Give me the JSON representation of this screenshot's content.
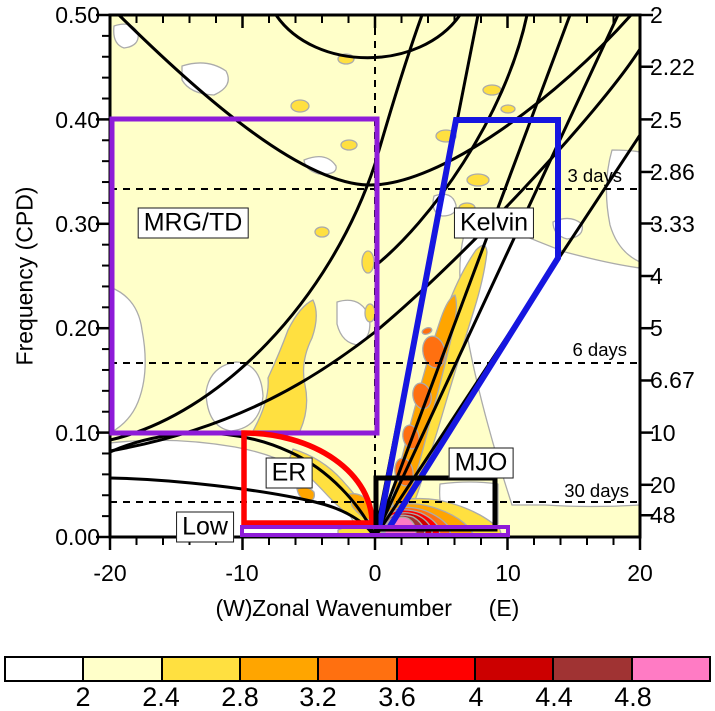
{
  "axes": {
    "y_left": {
      "title": "Frequency (CPD)",
      "ticks": [
        "0.50",
        "0.40",
        "0.30",
        "0.20",
        "0.10",
        "0.00"
      ],
      "range": [
        0.0,
        0.5
      ],
      "minor_step": 0.02
    },
    "y_right": {
      "ticks": [
        "2",
        "2.22",
        "2.5",
        "2.86",
        "3.33",
        "4",
        "5",
        "6.67",
        "10",
        "20",
        "48"
      ],
      "tick_periods": [
        2,
        2.22,
        2.5,
        2.86,
        3.33,
        4,
        5,
        6.67,
        10,
        20,
        48
      ]
    },
    "x": {
      "west": "(W)",
      "title": "Zonal Wavenumber",
      "east": "(E)",
      "ticks": [
        "-20",
        "-10",
        "0",
        "10",
        "20"
      ],
      "range": [
        -20,
        20
      ],
      "minor_step": 2
    }
  },
  "reference_lines": {
    "h": [
      {
        "label": "3 days",
        "frequency_cpd": 0.333
      },
      {
        "label": "6 days",
        "frequency_cpd": 0.167
      },
      {
        "label": "30 days",
        "frequency_cpd": 0.033
      }
    ],
    "v": [
      {
        "wavenumber": 0
      }
    ]
  },
  "filters": [
    {
      "label": "MRG/TD",
      "color": "#8E1BD8"
    },
    {
      "label": "Kelvin",
      "color": "#1616E0"
    },
    {
      "label": "ER",
      "color": "#FF0000"
    },
    {
      "label": "MJO",
      "color": "#000000"
    },
    {
      "label": "Low",
      "color": "#8E1BD8"
    }
  ],
  "colorbar": {
    "labels": [
      "2",
      "2.4",
      "2.8",
      "3.2",
      "3.6",
      "4",
      "4.4",
      "4.8"
    ],
    "colors": [
      "#FFFFFF",
      "#FFFFC9",
      "#FFE040",
      "#FFA500",
      "#FF7010",
      "#FF0000",
      "#CC0000",
      "#A03333",
      "#FF7BC4"
    ],
    "contour_line_color": "#ABABAB"
  },
  "chart_data": {
    "type": "heatmap",
    "subtype": "wavenumber-frequency filled contour spectrum (Wheeler-Kiladis diagram)",
    "xlabel": "(W)  Zonal Wavenumber  (E)",
    "ylabel": "Frequency (CPD)",
    "x_range": [
      -20,
      20
    ],
    "y_range": [
      0.0,
      0.5
    ],
    "right_axis_periods_days": [
      2,
      2.22,
      2.5,
      2.86,
      3.33,
      4,
      5,
      6.67,
      10,
      20,
      48
    ],
    "contour_levels": [
      2,
      2.4,
      2.8,
      3.2,
      3.6,
      4,
      4.4,
      4.8
    ],
    "dashed_reference_periods_days": [
      3,
      6,
      30
    ],
    "dispersion_curves": "black equatorial wave dispersion curves: Kelvin lines, n=1 ER, MRG/EIG n=0, n=1 inertio-gravity",
    "wave_filters": [
      {
        "name": "MRG/TD",
        "shape": "rectangle",
        "wavenumber_range": [
          -20,
          0
        ],
        "frequency_range": [
          0.1,
          0.4
        ]
      },
      {
        "name": "Kelvin",
        "shape": "polygon",
        "vertices_wavenumber_frequency": [
          [
            6.2,
            0.4
          ],
          [
            14,
            0.4
          ],
          [
            14,
            0.267
          ],
          [
            1.0,
            0.009
          ],
          [
            0.3,
            0.009
          ]
        ]
      },
      {
        "name": "ER",
        "shape": "quarter-ellipse",
        "wavenumber_range": [
          -10,
          -0.2
        ],
        "frequency_range": [
          0.012,
          0.1
        ]
      },
      {
        "name": "MJO",
        "shape": "rectangle",
        "wavenumber_range": [
          0,
          9
        ],
        "frequency_range": [
          0.014,
          0.055
        ]
      },
      {
        "name": "Low",
        "shape": "flat rectangle",
        "wavenumber_range": [
          -10,
          10
        ],
        "frequency_range": [
          0.0,
          0.009
        ]
      }
    ],
    "spectral_features": [
      {
        "name": "low-frequency eastward peak",
        "wavenumber": [
          0.5,
          5
        ],
        "frequency": [
          0.008,
          0.03
        ],
        "peak_level": "> 4.8 (pink core)"
      },
      {
        "name": "Kelvin band",
        "wavenumber": [
          1,
          6.5
        ],
        "frequency": [
          0.04,
          0.32
        ],
        "peak_level": "3.6-4.0 (orange core)"
      },
      {
        "name": "westward MRG/TD band",
        "wavenumber": [
          -9,
          -2
        ],
        "frequency": [
          0.06,
          0.25
        ],
        "peak_level": "2.8-3.2 (yellow)"
      },
      {
        "name": "westward ER band",
        "wavenumber": [
          -6,
          0
        ],
        "frequency": [
          0.02,
          0.06
        ],
        "peak_level": "3.2-3.6"
      },
      {
        "name": "background",
        "level": "2-2.4 pale yellow over most of domain, < 2 white patches"
      }
    ]
  }
}
